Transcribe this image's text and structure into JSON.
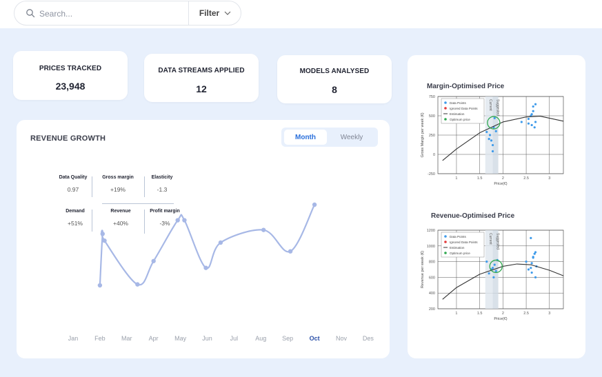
{
  "search": {
    "placeholder": "Search..."
  },
  "filter": {
    "label": "Filter"
  },
  "stats": [
    {
      "label": "PRICES TRACKED",
      "value": "23,948"
    },
    {
      "label": "DATA STREAMS APPLIED",
      "value": "12"
    },
    {
      "label": "MODELS ANALYSED",
      "value": "8"
    }
  ],
  "revenue": {
    "title": "REVENUE GROWTH",
    "toggle": {
      "active": "Month",
      "inactive": "Weekly"
    },
    "metrics": [
      {
        "label": "Data Quality",
        "value": "0.97"
      },
      {
        "label": "Gross margin",
        "value": "+19%"
      },
      {
        "label": "Elasticity",
        "value": "-1.3"
      },
      {
        "label": "Demand",
        "value": "+51%"
      },
      {
        "label": "Revenue",
        "value": "+40%"
      },
      {
        "label": "Profit margin",
        "value": "-3%"
      }
    ],
    "active_month": "Oct",
    "line_color": "#a7b8e6"
  },
  "chart_data": [
    {
      "type": "line",
      "title": "",
      "categories": [
        "Jan",
        "Feb",
        "Mar",
        "Apr",
        "May",
        "Jun",
        "Jul",
        "Aug",
        "Sep",
        "Oct",
        "Nov",
        "Des"
      ],
      "x": [
        2.0,
        2.1,
        2.17,
        3.4,
        4.0,
        4.9,
        5.15,
        5.95,
        6.5,
        8.1,
        9.1,
        10.0
      ],
      "values": [
        0.17,
        0.7,
        0.63,
        0.18,
        0.42,
        0.84,
        0.84,
        0.35,
        0.61,
        0.74,
        0.52,
        1.0
      ]
    },
    {
      "type": "scatter",
      "title": "Margin-Optimised Price",
      "xlabel": "Price(€)",
      "ylabel": "Gross Margin per week (€)",
      "xlim": [
        0.6,
        3.3
      ],
      "ylim": [
        -250,
        750
      ],
      "xticks": [
        "1",
        "1.5",
        "2",
        "2.5",
        "3"
      ],
      "yticks": [
        "750",
        "500",
        "250",
        "0",
        "-250"
      ],
      "legend": [
        "Data Points",
        "Ignored Data Points",
        "Estimation",
        "Optimum price"
      ],
      "vbands": [
        "Current",
        "Suggested"
      ],
      "curve": [
        [
          0.7,
          -80
        ],
        [
          1.0,
          70
        ],
        [
          1.5,
          280
        ],
        [
          2.0,
          420
        ],
        [
          2.5,
          485
        ],
        [
          2.8,
          495
        ],
        [
          3.3,
          430
        ]
      ],
      "optimum": [
        1.8,
        410
      ],
      "points": [
        [
          1.65,
          290
        ],
        [
          1.7,
          200
        ],
        [
          1.72,
          250
        ],
        [
          1.75,
          180
        ],
        [
          1.78,
          120
        ],
        [
          1.78,
          40
        ],
        [
          1.8,
          350
        ],
        [
          1.82,
          470
        ],
        [
          1.85,
          300
        ],
        [
          2.4,
          420
        ],
        [
          2.55,
          460
        ],
        [
          2.6,
          500
        ],
        [
          2.62,
          520
        ],
        [
          2.65,
          560
        ],
        [
          2.65,
          620
        ],
        [
          2.7,
          650
        ],
        [
          2.55,
          400
        ],
        [
          2.62,
          380
        ],
        [
          2.7,
          420
        ],
        [
          2.68,
          350
        ]
      ]
    },
    {
      "type": "scatter",
      "title": "Revenue-Optimised Price",
      "xlabel": "Price(€)",
      "ylabel": "Revenue per week (€)",
      "xlim": [
        0.6,
        3.3
      ],
      "ylim": [
        200,
        1200
      ],
      "xticks": [
        "1",
        "1.5",
        "2",
        "2.5",
        "3"
      ],
      "yticks": [
        "1200",
        "1000",
        "800",
        "600",
        "400",
        "200"
      ],
      "legend": [
        "Data Points",
        "Ignored Data Points",
        "Estimation",
        "Optimum price"
      ],
      "vbands": [
        "Current",
        "Suggested"
      ],
      "curve": [
        [
          0.7,
          320
        ],
        [
          1.0,
          470
        ],
        [
          1.5,
          640
        ],
        [
          2.0,
          740
        ],
        [
          2.3,
          770
        ],
        [
          2.6,
          760
        ],
        [
          3.0,
          690
        ],
        [
          3.3,
          620
        ]
      ],
      "optimum": [
        1.85,
        740
      ],
      "points": [
        [
          1.65,
          800
        ],
        [
          1.7,
          650
        ],
        [
          1.75,
          700
        ],
        [
          1.78,
          720
        ],
        [
          1.8,
          600
        ],
        [
          1.82,
          760
        ],
        [
          1.85,
          680
        ],
        [
          1.88,
          820
        ],
        [
          2.5,
          800
        ],
        [
          2.6,
          720
        ],
        [
          2.62,
          780
        ],
        [
          2.65,
          850
        ],
        [
          2.68,
          900
        ],
        [
          2.7,
          920
        ],
        [
          2.55,
          700
        ],
        [
          2.62,
          660
        ],
        [
          2.7,
          600
        ],
        [
          2.72,
          740
        ],
        [
          2.6,
          1100
        ],
        [
          2.65,
          860
        ]
      ]
    }
  ]
}
